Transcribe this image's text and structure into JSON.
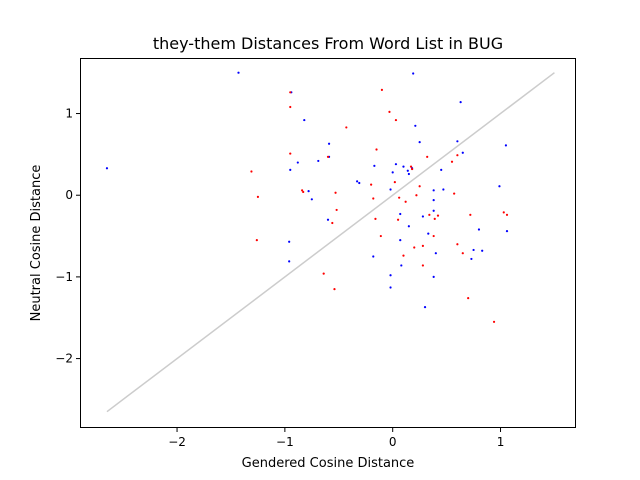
{
  "chart_data": {
    "type": "scatter",
    "title": "they-them Distances From Word List in BUG",
    "xlabel": "Gendered Cosine Distance",
    "ylabel": "Neutral Cosine Distance",
    "xlim": [
      -2.9,
      1.7
    ],
    "ylim": [
      -2.85,
      1.68
    ],
    "xticks": [
      -2,
      -1,
      0,
      1
    ],
    "yticks": [
      -2,
      -1,
      0,
      1
    ],
    "tick_labels_x": [
      "−2",
      "−1",
      "0",
      "1"
    ],
    "tick_labels_y": [
      "−2",
      "−1",
      "0",
      "1"
    ],
    "grid": false,
    "reference_line": {
      "x": [
        -2.65,
        1.5
      ],
      "y": [
        -2.65,
        1.5
      ],
      "color": "#cccccc"
    },
    "series": [
      {
        "color": "#0000ff",
        "points": [
          [
            -1.43,
            1.5
          ],
          [
            -0.94,
            1.26
          ],
          [
            -0.95,
            0.31
          ],
          [
            -0.82,
            0.92
          ],
          [
            -0.88,
            0.4
          ],
          [
            -0.78,
            0.05
          ],
          [
            -0.75,
            -0.05
          ],
          [
            -0.69,
            0.42
          ],
          [
            -0.59,
            0.63
          ],
          [
            -0.59,
            0.47
          ],
          [
            -0.6,
            -0.3
          ],
          [
            -0.33,
            0.17
          ],
          [
            -0.31,
            0.15
          ],
          [
            -0.17,
            0.36
          ],
          [
            -0.18,
            -0.75
          ],
          [
            -2.65,
            0.33
          ],
          [
            -0.96,
            -0.57
          ],
          [
            -0.96,
            -0.81
          ],
          [
            0.19,
            1.49
          ],
          [
            0.21,
            0.85
          ],
          [
            0.63,
            1.14
          ],
          [
            0.03,
            0.38
          ],
          [
            0.1,
            0.35
          ],
          [
            0.14,
            0.3
          ],
          [
            0.18,
            0.33
          ],
          [
            0.0,
            0.28
          ],
          [
            -0.02,
            0.07
          ],
          [
            0.15,
            0.26
          ],
          [
            0.07,
            -0.23
          ],
          [
            0.15,
            -0.38
          ],
          [
            0.07,
            -0.55
          ],
          [
            -0.02,
            -0.98
          ],
          [
            0.08,
            -0.86
          ],
          [
            -0.02,
            -1.13
          ],
          [
            0.25,
            0.65
          ],
          [
            0.28,
            -0.26
          ],
          [
            0.38,
            0.06
          ],
          [
            0.38,
            -0.19
          ],
          [
            0.38,
            -0.06
          ],
          [
            0.33,
            -0.47
          ],
          [
            0.4,
            -0.71
          ],
          [
            0.38,
            -1.0
          ],
          [
            0.3,
            -1.37
          ],
          [
            0.6,
            0.66
          ],
          [
            0.47,
            0.07
          ],
          [
            0.45,
            0.31
          ],
          [
            0.65,
            0.52
          ],
          [
            0.75,
            -0.67
          ],
          [
            0.83,
            -0.68
          ],
          [
            0.99,
            0.11
          ],
          [
            1.05,
            0.61
          ],
          [
            1.06,
            -0.44
          ],
          [
            0.8,
            -0.42
          ],
          [
            0.73,
            -0.78
          ]
        ]
      },
      {
        "color": "#ff0000",
        "points": [
          [
            -0.95,
            1.26
          ],
          [
            -0.95,
            1.08
          ],
          [
            -0.95,
            0.51
          ],
          [
            -1.31,
            0.29
          ],
          [
            -1.25,
            -0.02
          ],
          [
            -1.26,
            -0.55
          ],
          [
            -0.83,
            0.04
          ],
          [
            -0.84,
            0.06
          ],
          [
            -0.43,
            0.83
          ],
          [
            -0.6,
            0.47
          ],
          [
            -0.53,
            0.03
          ],
          [
            -0.52,
            -0.18
          ],
          [
            -0.56,
            -0.34
          ],
          [
            -0.64,
            -0.96
          ],
          [
            -0.54,
            -1.15
          ],
          [
            -0.2,
            0.13
          ],
          [
            -0.18,
            -0.04
          ],
          [
            -0.16,
            -0.29
          ],
          [
            -0.15,
            0.56
          ],
          [
            -0.11,
            -0.5
          ],
          [
            -0.1,
            1.29
          ],
          [
            -0.03,
            1.02
          ],
          [
            0.03,
            0.92
          ],
          [
            0.02,
            0.16
          ],
          [
            0.06,
            -0.03
          ],
          [
            0.05,
            -0.3
          ],
          [
            0.1,
            -0.74
          ],
          [
            0.12,
            -0.08
          ],
          [
            0.17,
            0.35
          ],
          [
            0.18,
            0.32
          ],
          [
            0.2,
            -0.64
          ],
          [
            0.25,
            0.11
          ],
          [
            0.28,
            -0.62
          ],
          [
            0.28,
            -0.86
          ],
          [
            0.32,
            0.47
          ],
          [
            0.34,
            -0.24
          ],
          [
            0.38,
            -0.5
          ],
          [
            0.39,
            -0.29
          ],
          [
            0.42,
            -0.25
          ],
          [
            0.55,
            0.41
          ],
          [
            0.57,
            0.02
          ],
          [
            0.6,
            0.49
          ],
          [
            0.6,
            -0.6
          ],
          [
            0.65,
            -0.71
          ],
          [
            0.7,
            -1.26
          ],
          [
            0.72,
            -0.24
          ],
          [
            0.94,
            -1.55
          ],
          [
            1.03,
            -0.21
          ],
          [
            1.06,
            -0.24
          ],
          [
            0.22,
            0.0
          ]
        ]
      }
    ]
  }
}
